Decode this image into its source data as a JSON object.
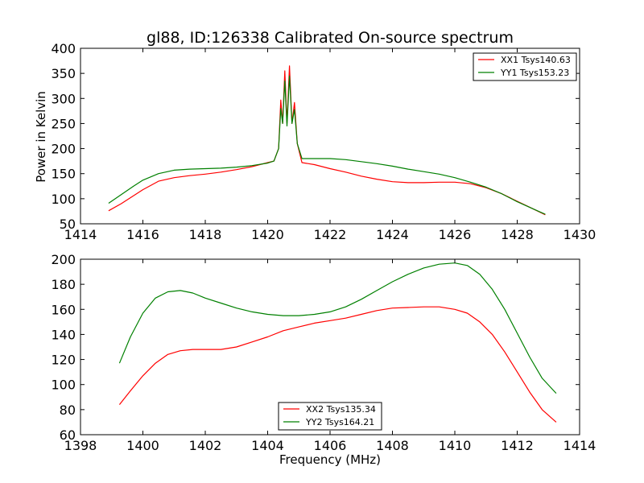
{
  "chart_data": [
    {
      "type": "line",
      "title": "gl88, ID:126338 Calibrated On-source spectrum",
      "xlabel": "",
      "ylabel": "Power in Kelvin",
      "xlim": [
        1414,
        1430
      ],
      "ylim": [
        50,
        400
      ],
      "xticks": [
        1414,
        1416,
        1418,
        1420,
        1422,
        1424,
        1426,
        1428,
        1430
      ],
      "yticks": [
        50,
        100,
        150,
        200,
        250,
        300,
        350,
        400
      ],
      "legend": "top-right",
      "grid": false,
      "series": [
        {
          "name": "XX1 Tsys140.63",
          "color": "#ff0000",
          "x": [
            1414.9,
            1415.3,
            1415.7,
            1416.0,
            1416.5,
            1417.0,
            1417.5,
            1418.0,
            1418.5,
            1419.0,
            1419.5,
            1420.0,
            1420.2,
            1420.35,
            1420.42,
            1420.48,
            1420.55,
            1420.62,
            1420.7,
            1420.78,
            1420.86,
            1420.95,
            1421.1,
            1421.5,
            1422.0,
            1422.5,
            1423.0,
            1423.5,
            1424.0,
            1424.5,
            1425.0,
            1425.5,
            1426.0,
            1426.5,
            1427.0,
            1427.5,
            1428.0,
            1428.5,
            1428.9
          ],
          "values": [
            76,
            90,
            106,
            118,
            135,
            142,
            146,
            149,
            153,
            158,
            164,
            172,
            175,
            200,
            297,
            250,
            355,
            250,
            365,
            250,
            292,
            210,
            172,
            168,
            160,
            153,
            145,
            139,
            134,
            132,
            132,
            133,
            133,
            130,
            122,
            110,
            95,
            80,
            68
          ]
        },
        {
          "name": "YY1 Tsys153.23",
          "color": "#008000",
          "x": [
            1414.9,
            1415.3,
            1415.7,
            1416.0,
            1416.5,
            1417.0,
            1417.5,
            1418.0,
            1418.5,
            1419.0,
            1419.5,
            1420.0,
            1420.2,
            1420.35,
            1420.42,
            1420.48,
            1420.55,
            1420.62,
            1420.7,
            1420.78,
            1420.86,
            1420.95,
            1421.1,
            1421.5,
            1422.0,
            1422.5,
            1423.0,
            1423.5,
            1424.0,
            1424.5,
            1425.0,
            1425.5,
            1426.0,
            1426.5,
            1427.0,
            1427.5,
            1428.0,
            1428.5,
            1428.9
          ],
          "values": [
            91,
            108,
            125,
            137,
            150,
            157,
            159,
            160,
            161,
            163,
            166,
            171,
            175,
            200,
            280,
            250,
            335,
            245,
            345,
            250,
            278,
            210,
            180,
            180,
            180,
            178,
            174,
            170,
            165,
            159,
            154,
            149,
            142,
            133,
            123,
            110,
            94,
            80,
            69
          ]
        }
      ]
    },
    {
      "type": "line",
      "title": "",
      "xlabel": "Frequency (MHz)",
      "ylabel": "",
      "xlim": [
        1398,
        1414
      ],
      "ylim": [
        60,
        200
      ],
      "xticks": [
        1398,
        1400,
        1402,
        1404,
        1406,
        1408,
        1410,
        1412,
        1414
      ],
      "yticks": [
        60,
        80,
        100,
        120,
        140,
        160,
        180,
        200
      ],
      "legend": "bottom-center",
      "grid": false,
      "series": [
        {
          "name": "XX2 Tsys135.34",
          "color": "#ff0000",
          "x": [
            1399.25,
            1399.6,
            1400.0,
            1400.4,
            1400.8,
            1401.2,
            1401.6,
            1402.0,
            1402.5,
            1403.0,
            1403.5,
            1404.0,
            1404.5,
            1405.0,
            1405.5,
            1406.0,
            1406.5,
            1407.0,
            1407.5,
            1408.0,
            1408.5,
            1409.0,
            1409.5,
            1410.0,
            1410.4,
            1410.8,
            1411.2,
            1411.6,
            1412.0,
            1412.4,
            1412.8,
            1413.25
          ],
          "values": [
            84,
            95,
            107,
            117,
            124,
            127,
            128,
            128,
            128,
            130,
            134,
            138,
            143,
            146,
            149,
            151,
            153,
            156,
            159,
            161,
            161.5,
            162,
            162,
            160,
            157,
            150,
            140,
            126,
            110,
            94,
            80,
            70
          ]
        },
        {
          "name": "YY2 Tsys164.21",
          "color": "#008000",
          "x": [
            1399.25,
            1399.6,
            1400.0,
            1400.4,
            1400.8,
            1401.2,
            1401.6,
            1402.0,
            1402.5,
            1403.0,
            1403.5,
            1404.0,
            1404.5,
            1405.0,
            1405.5,
            1406.0,
            1406.5,
            1407.0,
            1407.5,
            1408.0,
            1408.5,
            1409.0,
            1409.5,
            1410.0,
            1410.4,
            1410.8,
            1411.2,
            1411.6,
            1412.0,
            1412.4,
            1412.8,
            1413.25
          ],
          "values": [
            117,
            138,
            157,
            169,
            174,
            175,
            173,
            169,
            165,
            161,
            158,
            156,
            155,
            155,
            156,
            158,
            162,
            168,
            175,
            182,
            188,
            193,
            196,
            197,
            195,
            188,
            176,
            160,
            141,
            122,
            105,
            93
          ]
        }
      ]
    }
  ]
}
